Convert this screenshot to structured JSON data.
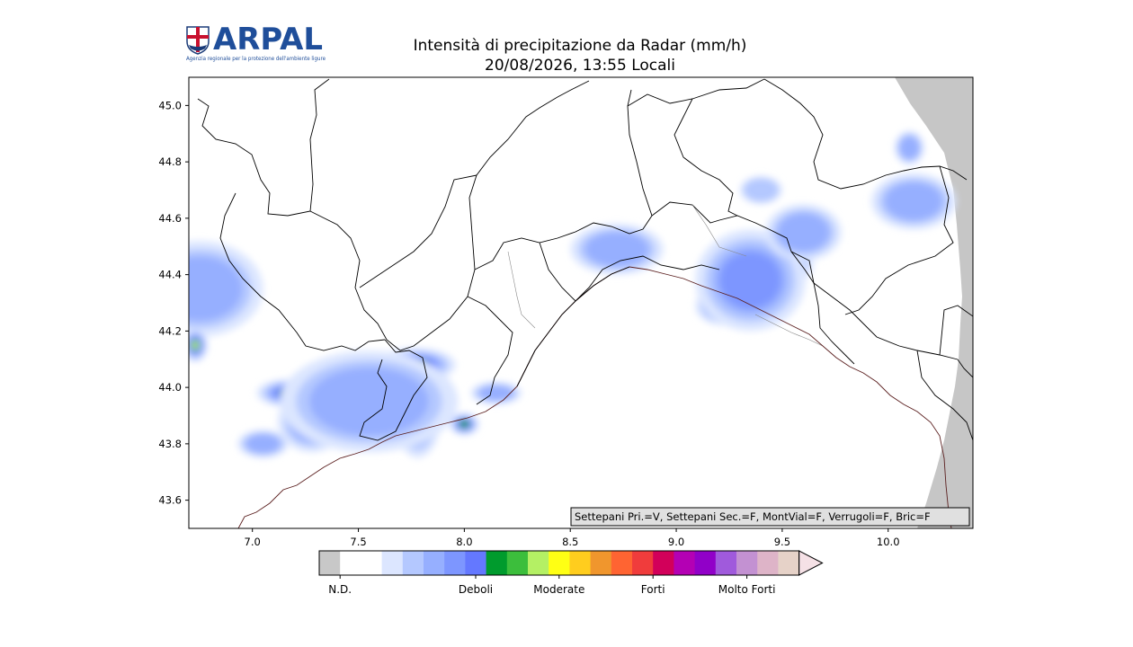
{
  "logo": {
    "text": "ARPAL",
    "tagline": "Agenzia regionale per la protezione dell'ambiente ligure"
  },
  "header": {
    "title": "Intensità di precipitazione da Radar (mm/h)",
    "subtitle": "20/08/2026, 13:55 Locali"
  },
  "map": {
    "lon_range": [
      6.7,
      10.4
    ],
    "lat_range": [
      43.5,
      45.1
    ],
    "x_ticks": [
      "7.0",
      "7.5",
      "8.0",
      "8.5",
      "9.0",
      "9.5",
      "10.0"
    ],
    "y_ticks": [
      "43.6",
      "43.8",
      "44.0",
      "44.2",
      "44.4",
      "44.6",
      "44.8",
      "45.0"
    ],
    "info_box": "Settepani Pri.=V, Settepani Sec.=F, MontVial=F, Verrugoli=F, Bric=F"
  },
  "colorbar": {
    "colors": [
      "#c8c8c8",
      "#ffffff",
      "#ffffff",
      "#dce6ff",
      "#b4c8ff",
      "#96afff",
      "#7d96ff",
      "#6478ff",
      "#009b2d",
      "#3cbe3c",
      "#b4f064",
      "#ffff14",
      "#ffcd1e",
      "#f0962d",
      "#ff6432",
      "#f03c3c",
      "#d2005a",
      "#b400b4",
      "#9100c8",
      "#a05adc",
      "#c391d2",
      "#deb4c8",
      "#e6d2c8"
    ],
    "extend_color": "#f5e1e6",
    "labels": [
      {
        "text": "N.D.",
        "at": 1
      },
      {
        "text": "Deboli",
        "at": 7.5
      },
      {
        "text": "Moderate",
        "at": 11.5
      },
      {
        "text": "Forti",
        "at": 16
      },
      {
        "text": "Molto Forti",
        "at": 20.5
      }
    ]
  },
  "rain_cells": [
    {
      "lon": 6.75,
      "lat": 44.35,
      "rx": 0.3,
      "ry": 0.17,
      "peak": 0.5
    },
    {
      "lon": 6.73,
      "lat": 44.15,
      "rx": 0.06,
      "ry": 0.06,
      "peak": 1.4
    },
    {
      "lon": 7.77,
      "lat": 44.08,
      "rx": 0.19,
      "ry": 0.06,
      "peak": 1.6
    },
    {
      "lon": 7.28,
      "lat": 43.88,
      "rx": 0.16,
      "ry": 0.11,
      "peak": 2.4
    },
    {
      "lon": 7.18,
      "lat": 43.98,
      "rx": 0.16,
      "ry": 0.05,
      "peak": 1.2
    },
    {
      "lon": 7.78,
      "lat": 43.9,
      "rx": 0.11,
      "ry": 0.15,
      "peak": 3.1
    },
    {
      "lon": 8.0,
      "lat": 43.87,
      "rx": 0.07,
      "ry": 0.04,
      "peak": 1.2
    },
    {
      "lon": 7.55,
      "lat": 43.95,
      "rx": 0.42,
      "ry": 0.18,
      "peak": 0.55
    },
    {
      "lon": 7.05,
      "lat": 43.8,
      "rx": 0.12,
      "ry": 0.05,
      "peak": 0.5
    },
    {
      "lon": 8.15,
      "lat": 43.98,
      "rx": 0.12,
      "ry": 0.04,
      "peak": 0.5
    },
    {
      "lon": 8.65,
      "lat": 44.46,
      "rx": 0.06,
      "ry": 0.04,
      "peak": 1.8
    },
    {
      "lon": 8.75,
      "lat": 44.46,
      "rx": 0.08,
      "ry": 0.04,
      "peak": 2.4
    },
    {
      "lon": 8.72,
      "lat": 44.49,
      "rx": 0.22,
      "ry": 0.09,
      "peak": 0.6
    },
    {
      "lon": 9.5,
      "lat": 44.45,
      "rx": 0.15,
      "ry": 0.1,
      "peak": 3.2
    },
    {
      "lon": 9.22,
      "lat": 44.29,
      "rx": 0.13,
      "ry": 0.07,
      "peak": 3.3
    },
    {
      "lon": 9.35,
      "lat": 44.38,
      "rx": 0.26,
      "ry": 0.18,
      "peak": 0.7
    },
    {
      "lon": 9.6,
      "lat": 44.55,
      "rx": 0.18,
      "ry": 0.1,
      "peak": 0.6
    },
    {
      "lon": 10.12,
      "lat": 44.66,
      "rx": 0.2,
      "ry": 0.1,
      "peak": 0.55
    },
    {
      "lon": 10.1,
      "lat": 44.85,
      "rx": 0.07,
      "ry": 0.06,
      "peak": 0.5
    },
    {
      "lon": 9.4,
      "lat": 44.7,
      "rx": 0.1,
      "ry": 0.05,
      "peak": 0.35
    }
  ]
}
